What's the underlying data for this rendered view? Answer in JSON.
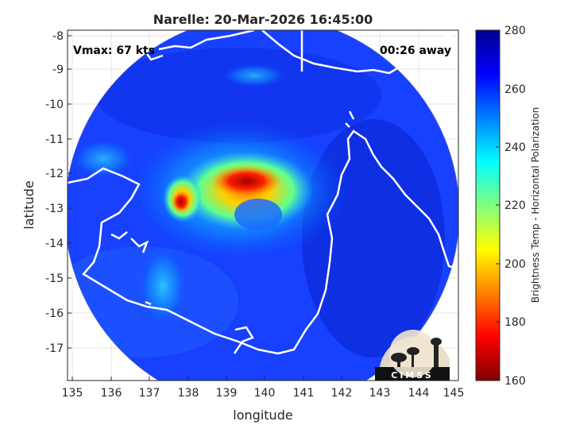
{
  "title": "Narelle: 20-Mar-2026 16:45:00",
  "vmax_label": "Vmax: 67 kts",
  "time_label": "00:26 away",
  "xlabel": "longitude",
  "ylabel": "latitude",
  "x_ticks": [
    "135",
    "136",
    "137",
    "138",
    "139",
    "140",
    "141",
    "142",
    "143",
    "144",
    "145"
  ],
  "y_ticks": [
    "-8",
    "-9",
    "-10",
    "-11",
    "-12",
    "-13",
    "-14",
    "-15",
    "-16",
    "-17"
  ],
  "colorbar": {
    "label": "Brightness Temp - Horizontal Polarization",
    "ticks": [
      "280",
      "260",
      "240",
      "220",
      "200",
      "180",
      "160"
    ]
  },
  "logo_text": "CIMSS"
}
